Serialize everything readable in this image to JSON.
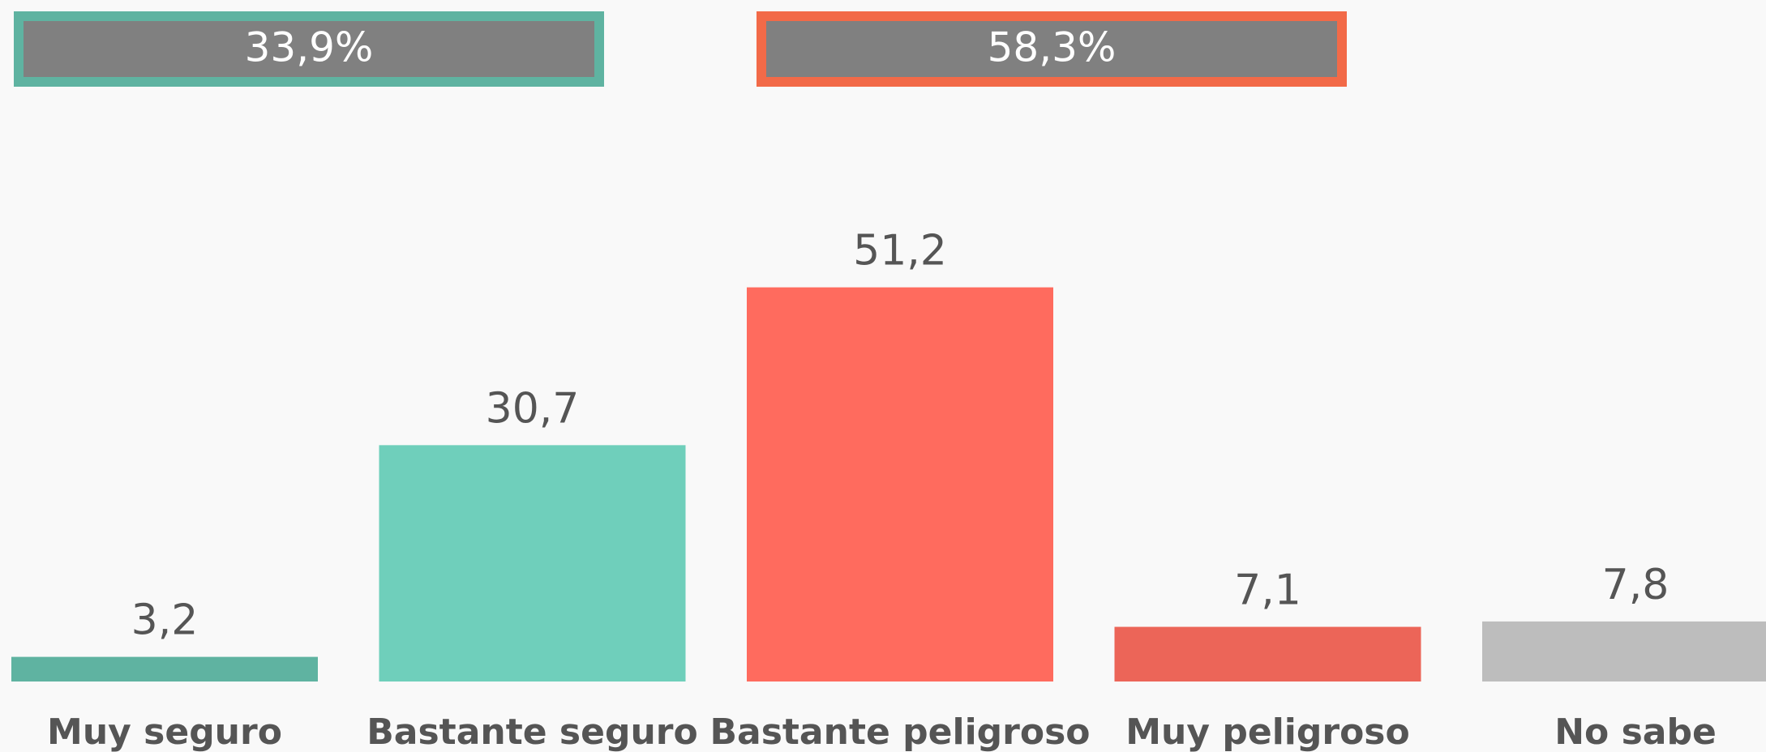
{
  "chart_data": {
    "type": "bar",
    "summaries": [
      {
        "label": "33,9%",
        "color": "#5fb3a1"
      },
      {
        "label": "58,3%",
        "color": "#f26a48"
      }
    ],
    "categories": [
      "Muy seguro",
      "Bastante seguro",
      "Bastante peligroso",
      "Muy peligroso",
      "No sabe"
    ],
    "values": [
      3.2,
      30.7,
      51.2,
      7.1,
      7.8
    ],
    "value_labels": [
      "3,2",
      "30,7",
      "51,2",
      "7,1",
      "7,8"
    ],
    "colors": [
      "#5fb3a1",
      "#6fcfbb",
      "#ff6b5e",
      "#ec6558",
      "#bdbdbd"
    ]
  }
}
